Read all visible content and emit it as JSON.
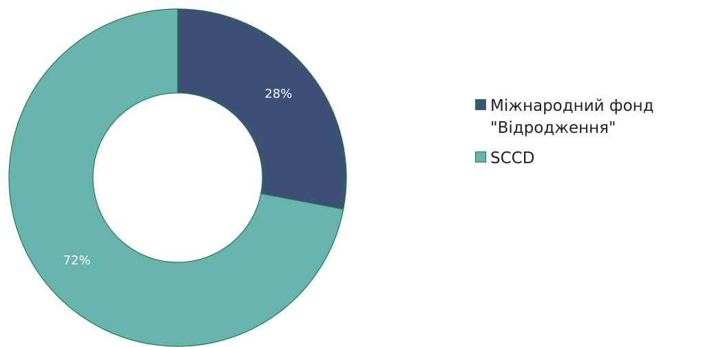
{
  "chart_data": {
    "type": "pie",
    "donut": true,
    "slices": [
      {
        "label": "Міжнародний фонд\n\"Відродження\"",
        "value": 28,
        "display": "28%",
        "color": "#3d5075"
      },
      {
        "label": "SCCD",
        "value": 72,
        "display": "72%",
        "color": "#67b3ae"
      }
    ],
    "stroke_color": "#1e7b45",
    "legend_position": "right"
  }
}
